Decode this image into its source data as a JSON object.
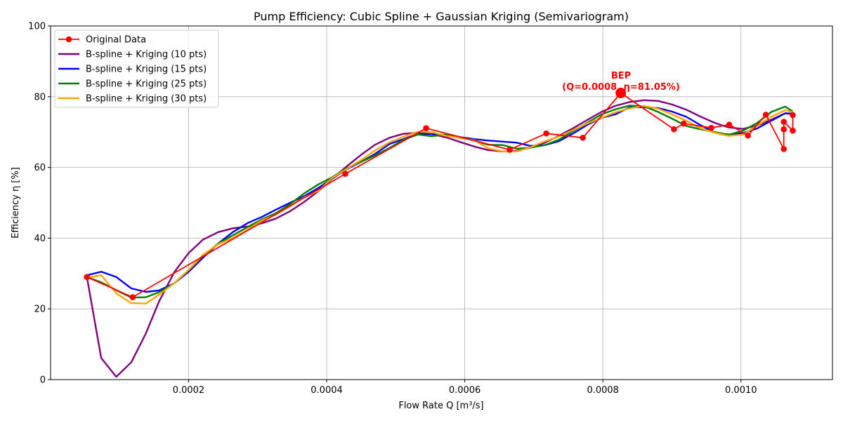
{
  "chart_data": {
    "type": "line",
    "title": "Pump Efficiency: Cubic Spline + Gaussian Kriging (Semivariogram)",
    "xlabel": "Flow Rate Q [m³/s]",
    "ylabel": "Efficiency η [%]",
    "xlim": [
      1.3e-07,
      0.0011325
    ],
    "ylim": [
      0,
      100
    ],
    "xticks": [
      0.0002,
      0.0004,
      0.0006,
      0.0008,
      0.001
    ],
    "xtick_labels": [
      "0.0002",
      "0.0004",
      "0.0006",
      "0.0008",
      "0.0010"
    ],
    "yticks": [
      0,
      20,
      40,
      60,
      80,
      100
    ],
    "ytick_labels": [
      "0",
      "20",
      "40",
      "60",
      "80",
      "100"
    ],
    "grid": true,
    "legend_position": "top-left",
    "series": [
      {
        "name": "Original Data",
        "color": "#ff0000",
        "markers": true,
        "points": [
          [
            5.27e-05,
            29.0
          ],
          [
            0.000119,
            23.3
          ],
          [
            0.000427,
            58.2
          ],
          [
            0.000544,
            71.1
          ],
          [
            0.000665,
            65.0
          ],
          [
            0.000718,
            69.6
          ],
          [
            0.000771,
            68.4
          ],
          [
            0.000826,
            81.05
          ],
          [
            0.000903,
            70.8
          ],
          [
            0.000917,
            72.4
          ],
          [
            0.000957,
            71.2
          ],
          [
            0.000983,
            72.1
          ],
          [
            0.00101,
            69.0
          ],
          [
            0.001036,
            74.9
          ],
          [
            0.001062,
            65.2
          ],
          [
            0.001062,
            70.8
          ],
          [
            0.001062,
            72.9
          ],
          [
            0.001075,
            70.4
          ],
          [
            0.001075,
            74.8
          ]
        ]
      },
      {
        "name": "B-spline + Kriging (10 pts)",
        "color": "#800080",
        "markers": false,
        "points": [
          [
            5.27e-05,
            29.0
          ],
          [
            7.35e-05,
            6.1
          ],
          [
            9.53e-05,
            0.8
          ],
          [
            0.000117,
            4.9
          ],
          [
            0.000138,
            13.0
          ],
          [
            0.000157,
            22.0
          ],
          [
            0.000179,
            30.3
          ],
          [
            0.0002,
            35.8
          ],
          [
            0.000221,
            39.6
          ],
          [
            0.000243,
            41.7
          ],
          [
            0.000264,
            42.8
          ],
          [
            0.000286,
            43.3
          ],
          [
            0.000306,
            44.2
          ],
          [
            0.000326,
            45.5
          ],
          [
            0.000347,
            47.6
          ],
          [
            0.000367,
            50.2
          ],
          [
            0.000388,
            53.3
          ],
          [
            0.000408,
            56.8
          ],
          [
            0.000429,
            60.3
          ],
          [
            0.00045,
            63.6
          ],
          [
            0.00047,
            66.4
          ],
          [
            0.000491,
            68.4
          ],
          [
            0.000511,
            69.5
          ],
          [
            0.000532,
            69.8
          ],
          [
            0.000552,
            69.4
          ],
          [
            0.000573,
            68.5
          ],
          [
            0.000593,
            67.2
          ],
          [
            0.000614,
            65.9
          ],
          [
            0.000634,
            64.9
          ],
          [
            0.000655,
            64.5
          ],
          [
            0.000675,
            64.7
          ],
          [
            0.000695,
            65.6
          ],
          [
            0.000716,
            67.0
          ],
          [
            0.000736,
            68.9
          ],
          [
            0.000757,
            71.1
          ],
          [
            0.000777,
            73.4
          ],
          [
            0.000798,
            75.7
          ],
          [
            0.000818,
            77.4
          ],
          [
            0.000839,
            78.5
          ],
          [
            0.000859,
            79.0
          ],
          [
            0.00088,
            78.8
          ],
          [
            0.0009,
            77.8
          ],
          [
            0.000921,
            76.3
          ],
          [
            0.000941,
            74.4
          ],
          [
            0.000962,
            72.6
          ],
          [
            0.000982,
            71.3
          ],
          [
            0.001003,
            70.9
          ],
          [
            0.001023,
            71.8
          ],
          [
            0.001044,
            73.5
          ],
          [
            0.001064,
            75.3
          ],
          [
            0.001075,
            75.1
          ]
        ]
      },
      {
        "name": "B-spline + Kriging (15 pts)",
        "color": "#0000ff",
        "markers": false,
        "points": [
          [
            5.27e-05,
            29.5
          ],
          [
            7.35e-05,
            30.5
          ],
          [
            9.53e-05,
            29.0
          ],
          [
            0.000117,
            25.8
          ],
          [
            0.000138,
            24.8
          ],
          [
            0.000157,
            25.2
          ],
          [
            0.000179,
            27.2
          ],
          [
            0.0002,
            30.5
          ],
          [
            0.000221,
            34.5
          ],
          [
            0.000243,
            38.5
          ],
          [
            0.000264,
            41.7
          ],
          [
            0.000286,
            44.3
          ],
          [
            0.000306,
            46.0
          ],
          [
            0.000326,
            48.0
          ],
          [
            0.000347,
            50.0
          ],
          [
            0.000367,
            51.8
          ],
          [
            0.000388,
            54.2
          ],
          [
            0.000408,
            56.8
          ],
          [
            0.000429,
            59.5
          ],
          [
            0.00045,
            61.6
          ],
          [
            0.00047,
            63.8
          ],
          [
            0.000491,
            66.6
          ],
          [
            0.000511,
            68.0
          ],
          [
            0.000532,
            69.5
          ],
          [
            0.000552,
            69.4
          ],
          [
            0.000573,
            69.2
          ],
          [
            0.000593,
            68.6
          ],
          [
            0.000614,
            68.0
          ],
          [
            0.000634,
            67.6
          ],
          [
            0.000655,
            67.3
          ],
          [
            0.000675,
            67.0
          ],
          [
            0.000695,
            66.1
          ],
          [
            0.000716,
            66.3
          ],
          [
            0.000736,
            67.4
          ],
          [
            0.000757,
            69.6
          ],
          [
            0.000777,
            72.0
          ],
          [
            0.000798,
            74.0
          ],
          [
            0.000818,
            75.0
          ],
          [
            0.000839,
            77.0
          ],
          [
            0.000859,
            77.0
          ],
          [
            0.00088,
            76.8
          ],
          [
            0.0009,
            75.8
          ],
          [
            0.000921,
            74.3
          ],
          [
            0.000941,
            72.0
          ],
          [
            0.000962,
            69.8
          ],
          [
            0.000982,
            69.3
          ],
          [
            0.001003,
            69.7
          ],
          [
            0.001023,
            71.0
          ],
          [
            0.001044,
            73.2
          ],
          [
            0.001064,
            75.3
          ],
          [
            0.001075,
            75.2
          ]
        ]
      },
      {
        "name": "B-spline + Kriging (25 pts)",
        "color": "#008000",
        "markers": false,
        "points": [
          [
            5.27e-05,
            29.0
          ],
          [
            7.35e-05,
            27.5
          ],
          [
            9.53e-05,
            25.3
          ],
          [
            0.000117,
            23.2
          ],
          [
            0.000138,
            23.3
          ],
          [
            0.000157,
            24.7
          ],
          [
            0.000179,
            27.2
          ],
          [
            0.0002,
            31.0
          ],
          [
            0.000221,
            35.0
          ],
          [
            0.000243,
            38.5
          ],
          [
            0.000264,
            40.8
          ],
          [
            0.000286,
            43.2
          ],
          [
            0.000306,
            45.3
          ],
          [
            0.000326,
            47.0
          ],
          [
            0.000347,
            49.6
          ],
          [
            0.000367,
            52.6
          ],
          [
            0.000388,
            55.2
          ],
          [
            0.000408,
            57.2
          ],
          [
            0.000429,
            59.8
          ],
          [
            0.00045,
            61.6
          ],
          [
            0.00047,
            63.4
          ],
          [
            0.000491,
            65.5
          ],
          [
            0.000511,
            67.8
          ],
          [
            0.000532,
            69.3
          ],
          [
            0.000552,
            68.8
          ],
          [
            0.000573,
            69.3
          ],
          [
            0.000593,
            68.6
          ],
          [
            0.000614,
            67.6
          ],
          [
            0.000634,
            66.4
          ],
          [
            0.000655,
            66.3
          ],
          [
            0.000675,
            65.3
          ],
          [
            0.000695,
            65.6
          ],
          [
            0.000716,
            66.3
          ],
          [
            0.000736,
            67.8
          ],
          [
            0.000757,
            70.3
          ],
          [
            0.000777,
            72.6
          ],
          [
            0.000798,
            75.0
          ],
          [
            0.000818,
            76.4
          ],
          [
            0.000839,
            77.5
          ],
          [
            0.000859,
            77.3
          ],
          [
            0.00088,
            75.7
          ],
          [
            0.0009,
            73.8
          ],
          [
            0.000921,
            71.7
          ],
          [
            0.000941,
            70.8
          ],
          [
            0.000962,
            70.0
          ],
          [
            0.000982,
            69.2
          ],
          [
            0.001003,
            70.4
          ],
          [
            0.001023,
            72.5
          ],
          [
            0.001044,
            75.7
          ],
          [
            0.001064,
            77.2
          ],
          [
            0.001075,
            75.8
          ]
        ]
      },
      {
        "name": "B-spline + Kriging (30 pts)",
        "color": "#ffa500",
        "markers": false,
        "points": [
          [
            5.27e-05,
            28.8
          ],
          [
            7.35e-05,
            29.5
          ],
          [
            9.53e-05,
            24.4
          ],
          [
            0.000117,
            21.6
          ],
          [
            0.000138,
            21.5
          ],
          [
            0.000157,
            24.0
          ],
          [
            0.000179,
            27.2
          ],
          [
            0.0002,
            31.0
          ],
          [
            0.000221,
            35.3
          ],
          [
            0.000243,
            38.3
          ],
          [
            0.000264,
            40.0
          ],
          [
            0.000286,
            42.5
          ],
          [
            0.000306,
            45.0
          ],
          [
            0.000326,
            46.6
          ],
          [
            0.000347,
            49.0
          ],
          [
            0.000367,
            51.5
          ],
          [
            0.000388,
            53.4
          ],
          [
            0.000408,
            57.0
          ],
          [
            0.000429,
            59.6
          ],
          [
            0.00045,
            62.1
          ],
          [
            0.00047,
            64.8
          ],
          [
            0.000491,
            67.1
          ],
          [
            0.000511,
            68.7
          ],
          [
            0.000532,
            70.1
          ],
          [
            0.000552,
            70.0
          ],
          [
            0.000573,
            68.9
          ],
          [
            0.000593,
            68.3
          ],
          [
            0.000614,
            67.7
          ],
          [
            0.000634,
            65.4
          ],
          [
            0.000655,
            64.5
          ],
          [
            0.000675,
            64.5
          ],
          [
            0.000695,
            65.7
          ],
          [
            0.000716,
            67.4
          ],
          [
            0.000736,
            68.7
          ],
          [
            0.000757,
            70.6
          ],
          [
            0.000777,
            72.4
          ],
          [
            0.000798,
            74.0
          ],
          [
            0.000818,
            75.6
          ],
          [
            0.000839,
            76.7
          ],
          [
            0.000859,
            77.4
          ],
          [
            0.00088,
            76.6
          ],
          [
            0.0009,
            75.0
          ],
          [
            0.000921,
            73.2
          ],
          [
            0.000941,
            71.1
          ],
          [
            0.000962,
            69.8
          ],
          [
            0.000982,
            68.9
          ],
          [
            0.001003,
            69.3
          ],
          [
            0.001023,
            71.8
          ],
          [
            0.001044,
            74.3
          ],
          [
            0.001064,
            76.2
          ],
          [
            0.001075,
            75.6
          ]
        ]
      }
    ],
    "annotation": {
      "line1": "BEP",
      "line2": "(Q=0.0008, η=81.05%)",
      "point": [
        0.000826,
        81.05
      ],
      "color": "#ff0000"
    }
  }
}
